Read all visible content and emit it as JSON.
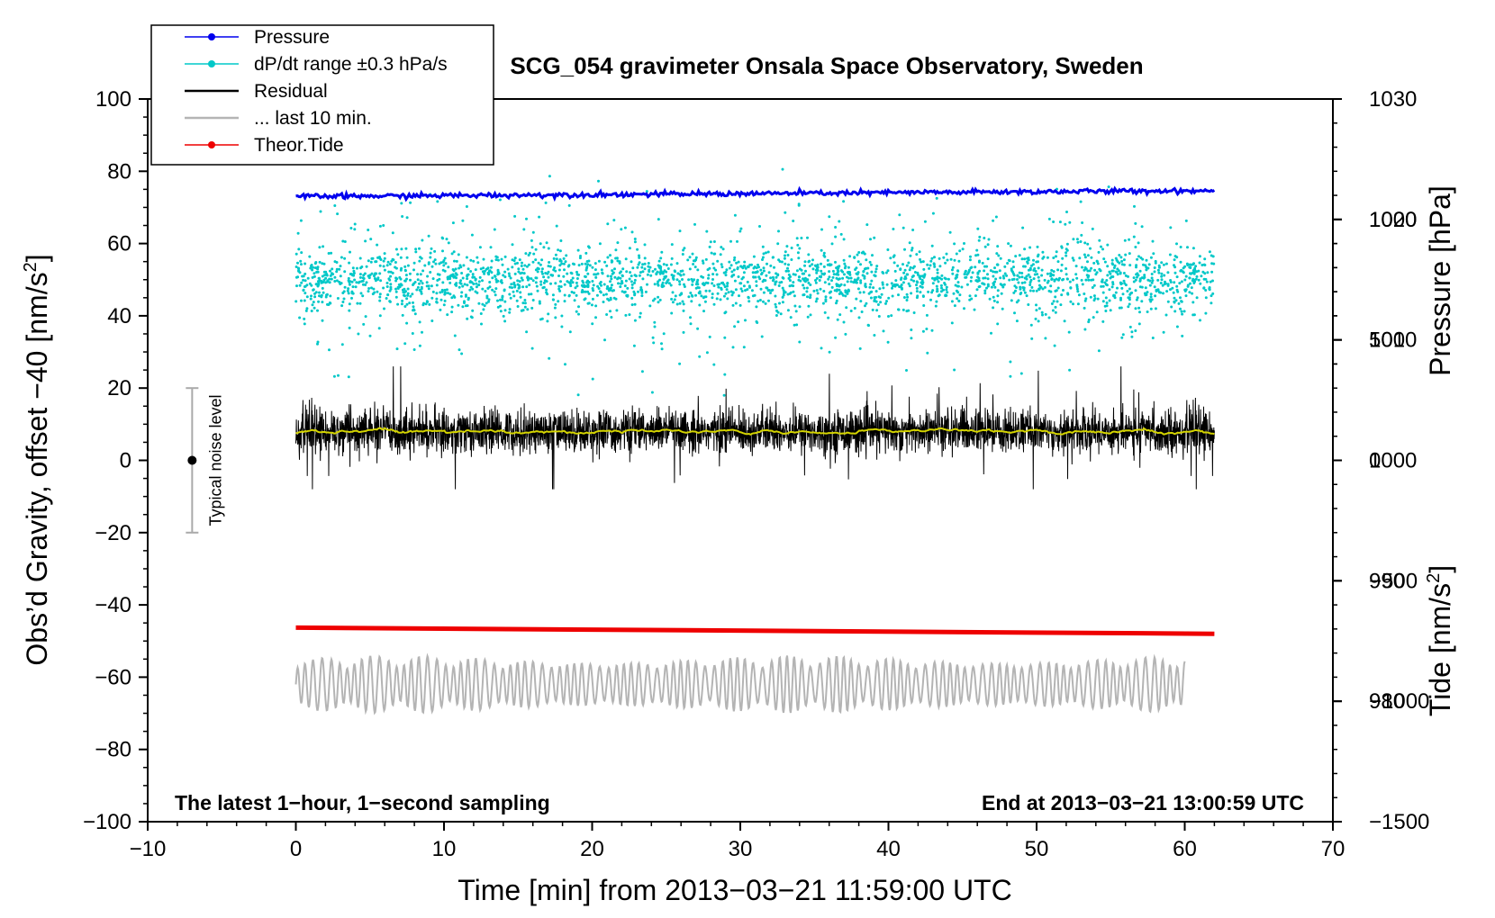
{
  "chart_data": {
    "type": "line",
    "title": "SCG_054 gravimeter Onsala Space Observatory, Sweden",
    "xlabel": "Time [min] from 2013−03−21 11:59:00 UTC",
    "ylabel_left": "Obs’d Gravity, offset −40 [nm/s",
    "ylabel_left_sup": "2",
    "ylabel_left_end": "]",
    "ylabel_right_pressure": "Pressure [hPa]",
    "ylabel_right_tide": "Tide [nm/s",
    "ylabel_right_tide_sup": "2",
    "ylabel_right_tide_end": "]",
    "xlim": [
      -10,
      70
    ],
    "ylim_left": [
      -100,
      100
    ],
    "x_ticks": [
      "−10",
      "0",
      "10",
      "20",
      "30",
      "40",
      "50",
      "60",
      "70"
    ],
    "y_ticks_left": [
      "100",
      "80",
      "60",
      "40",
      "20",
      "0",
      "−20",
      "−40",
      "−60",
      "−80",
      "−100"
    ],
    "pressure_axis": {
      "range": [
        970,
        1030
      ],
      "ticks": [
        "1030",
        "1020",
        "1010",
        "1000",
        "990",
        "980"
      ]
    },
    "tide_axis": {
      "range": [
        -1500,
        1500
      ],
      "ticks": [
        "1000",
        "500",
        "0",
        "−500",
        "−1000",
        "−1500"
      ]
    },
    "legend": [
      {
        "label": "Pressure",
        "color": "#0000ee",
        "style": "line-dot"
      },
      {
        "label": "dP/dt range ±0.3 hPa/s",
        "color": "#00c8c8",
        "style": "line-dot"
      },
      {
        "label": "Residual",
        "color": "#000000",
        "style": "line"
      },
      {
        "label": "... last 10 min.",
        "color": "#b4b4b4",
        "style": "line"
      },
      {
        "label": "Theor.Tide",
        "color": "#ee0000",
        "style": "line-dot"
      }
    ],
    "series": [
      {
        "name": "Pressure",
        "axis": "pressure",
        "x_range": [
          0,
          62
        ],
        "start": 1021.9,
        "end": 1022.4,
        "noise": 0.2
      },
      {
        "name": "dP/dt range ±0.3 hPa/s",
        "axis": "left",
        "x_range": [
          0,
          62
        ],
        "center": 50,
        "spread": 4,
        "outlier_spread": 25
      },
      {
        "name": "Residual",
        "axis": "left",
        "x_range": [
          0,
          62
        ],
        "center": 8,
        "amplitude": 7,
        "min": -8,
        "max": 26
      },
      {
        "name": "Residual smoothed",
        "axis": "left",
        "color": "#d4d400",
        "x_range": [
          0,
          62
        ],
        "center": 8
      },
      {
        "name": "Theor.Tide",
        "axis": "left",
        "x_range": [
          0,
          62
        ],
        "start": -46.3,
        "end": -48.0
      },
      {
        "name": "... last 10 min.",
        "axis": "left",
        "x_range": [
          0,
          60
        ],
        "center": -62,
        "amplitude": 8,
        "min": -73,
        "max": -48
      }
    ],
    "noise_indicator": {
      "label": "Typical noise level",
      "x": -7,
      "center": 0,
      "range": [
        -20,
        20
      ]
    },
    "annotations": {
      "left": "The latest 1−hour, 1−second sampling",
      "right": "End at 2013−03−21 13:00:59 UTC"
    }
  }
}
